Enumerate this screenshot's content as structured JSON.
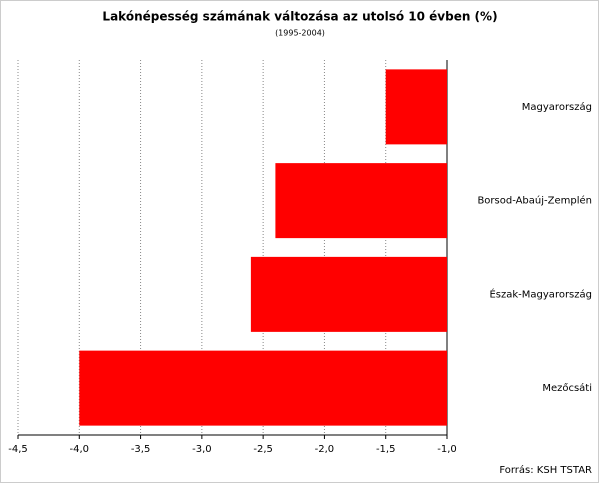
{
  "chart_data": {
    "type": "hbar",
    "title": "Lakónépesség számának változása az utolsó 10 évben (%)",
    "subtitle": "(1995-2004)",
    "categories": [
      "Magyarország",
      "Borsod-Abaúj-Zemplén",
      "Észak-Magyarország",
      "Mezőcsáti"
    ],
    "values": [
      -1.5,
      -2.4,
      -2.6,
      -4.0
    ],
    "color": "#ff0000",
    "xlim": [
      -4.5,
      -1.0
    ],
    "xticks": [
      {
        "value": -4.5,
        "label": "-4,5"
      },
      {
        "value": -4.0,
        "label": "-4,0"
      },
      {
        "value": -3.5,
        "label": "-3,5"
      },
      {
        "value": -3.0,
        "label": "-3,0"
      },
      {
        "value": -2.5,
        "label": "-2,5"
      },
      {
        "value": -2.0,
        "label": "-2,0"
      },
      {
        "value": -1.5,
        "label": "-1,5"
      },
      {
        "value": -1.0,
        "label": "-1,0"
      }
    ],
    "grid": true,
    "source": "Forrás: KSH TSTAR"
  }
}
